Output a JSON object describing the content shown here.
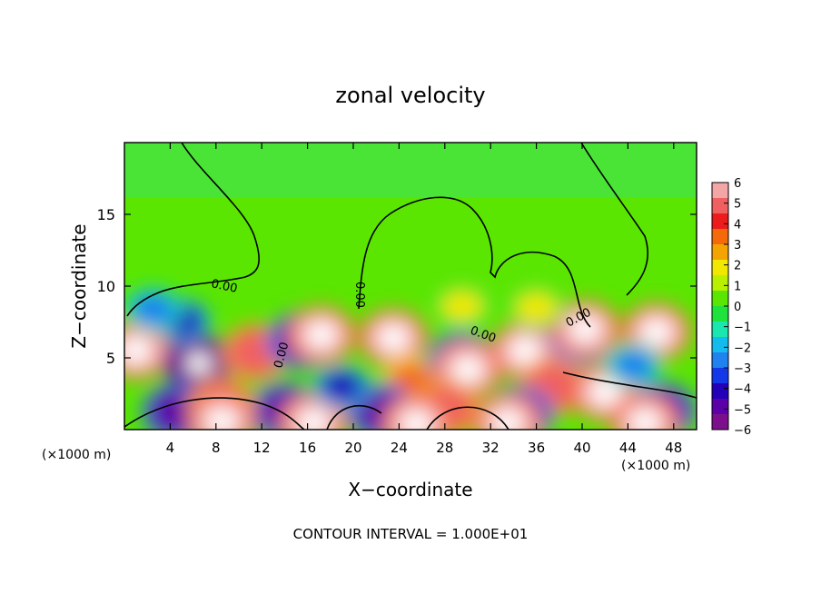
{
  "chart_data": {
    "type": "heatmap",
    "title": "zonal velocity",
    "xlabel": "X−coordinate",
    "ylabel": "Z−coordinate",
    "x_units_left": "(×1000 m)",
    "x_units_right": "(×1000 m)",
    "xlim": [
      0,
      50
    ],
    "ylim": [
      0,
      20
    ],
    "x_ticks": [
      4,
      8,
      12,
      16,
      20,
      24,
      28,
      32,
      36,
      40,
      44,
      48
    ],
    "x_tick_labels": [
      "4",
      "8",
      "12",
      "16",
      "20",
      "24",
      "28",
      "32",
      "36",
      "40",
      "44",
      "48"
    ],
    "y_ticks": [
      5,
      10,
      15
    ],
    "y_tick_labels": [
      "5",
      "10",
      "15"
    ],
    "colorbar": {
      "range": [
        -6,
        6
      ],
      "labels": [
        "6",
        "5",
        "4",
        "3",
        "2",
        "1",
        "0",
        "−1",
        "−2",
        "−3",
        "−4",
        "−5",
        "−6"
      ],
      "colors": [
        "#f4a6a6",
        "#f06060",
        "#ec1c1c",
        "#f46a0a",
        "#f4a400",
        "#f0e800",
        "#b8f000",
        "#5ae600",
        "#1fe23c",
        "#1ae6b0",
        "#14bcee",
        "#1f82ee",
        "#1438e8",
        "#2400b8",
        "#5c00a8",
        "#7c108c"
      ]
    },
    "contour_labels": [
      "0.00",
      "0.00",
      "0.00",
      "0.00",
      "0.00"
    ],
    "annotation": "CONTOUR INTERVAL = 1.000E+01",
    "blobs": [
      {
        "x": 1.0,
        "z": 5.5,
        "v": 6
      },
      {
        "x": 6.5,
        "z": 4.6,
        "v": -6
      },
      {
        "x": 4.5,
        "z": 1.2,
        "v": -5
      },
      {
        "x": 5.0,
        "z": 7.6,
        "v": -4
      },
      {
        "x": 11.5,
        "z": 5.4,
        "v": 5
      },
      {
        "x": 15.5,
        "z": 6.2,
        "v": -5
      },
      {
        "x": 17.2,
        "z": 6.6,
        "v": 6
      },
      {
        "x": 14.0,
        "z": 1.3,
        "v": -5
      },
      {
        "x": 16.5,
        "z": 0.5,
        "v": 6
      },
      {
        "x": 23.5,
        "z": 6.4,
        "v": 6
      },
      {
        "x": 25.0,
        "z": 3.6,
        "v": 4
      },
      {
        "x": 22.5,
        "z": 1.2,
        "v": -5
      },
      {
        "x": 29.5,
        "z": 4.8,
        "v": -5
      },
      {
        "x": 30.0,
        "z": 4.2,
        "v": 6
      },
      {
        "x": 28.0,
        "z": 1.4,
        "v": 5
      },
      {
        "x": 25.5,
        "z": 0.4,
        "v": 6
      },
      {
        "x": 35.0,
        "z": 5.5,
        "v": 6
      },
      {
        "x": 37.5,
        "z": 3.0,
        "v": 5
      },
      {
        "x": 34.5,
        "z": 1.0,
        "v": -5
      },
      {
        "x": 40.0,
        "z": 6.6,
        "v": -5
      },
      {
        "x": 40.3,
        "z": 7.0,
        "v": 6
      },
      {
        "x": 42.0,
        "z": 2.6,
        "v": 6
      },
      {
        "x": 46.5,
        "z": 6.8,
        "v": 6
      },
      {
        "x": 47.0,
        "z": 1.3,
        "v": -5
      },
      {
        "x": 45.5,
        "z": 0.5,
        "v": 6
      },
      {
        "x": 33.5,
        "z": 0.5,
        "v": 6
      },
      {
        "x": 8.5,
        "z": 1.6,
        "v": 5
      },
      {
        "x": 8.5,
        "z": 0.6,
        "v": 6
      },
      {
        "x": 19.0,
        "z": 3.0,
        "v": -4
      },
      {
        "x": 44.5,
        "z": 4.5,
        "v": -3
      },
      {
        "x": 29.5,
        "z": 8.6,
        "v": 2
      },
      {
        "x": 36.0,
        "z": 8.5,
        "v": 2
      },
      {
        "x": 2.5,
        "z": 8.4,
        "v": -3
      }
    ]
  }
}
